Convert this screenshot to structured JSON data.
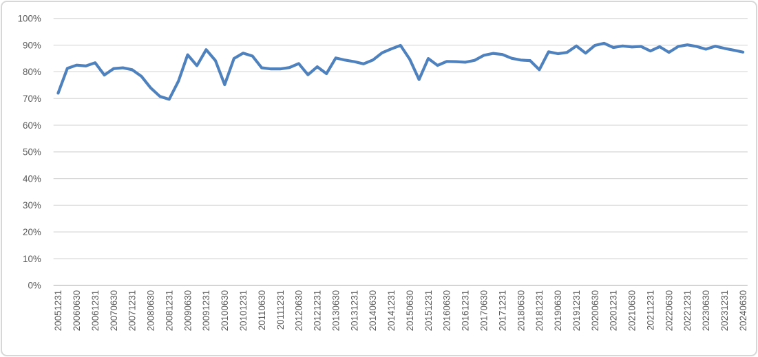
{
  "chart_data": {
    "type": "line",
    "title": "",
    "legend": "none",
    "grid": "horizontal",
    "ylim": [
      0,
      100
    ],
    "y_ticks": [
      "0%",
      "10%",
      "20%",
      "30%",
      "40%",
      "50%",
      "60%",
      "70%",
      "80%",
      "90%",
      "100%"
    ],
    "x_tick_labels": [
      "20051231",
      "20060630",
      "20061231",
      "20070630",
      "20071231",
      "20080630",
      "20081231",
      "20090630",
      "20091231",
      "20100630",
      "20101231",
      "20110630",
      "20111231",
      "20120630",
      "20121231",
      "20130630",
      "20131231",
      "20140630",
      "20141231",
      "20150630",
      "20151231",
      "20160630",
      "20161231",
      "20170630",
      "20171231",
      "20180630",
      "20181231",
      "20190630",
      "20191231",
      "20200630",
      "20201231",
      "20210630",
      "20211231",
      "20220630",
      "20221231",
      "20230630",
      "20231231",
      "20240630"
    ],
    "points_per_tick": 2,
    "series": [
      {
        "name": "",
        "color": "#4F81BD",
        "values": [
          72.0,
          81.3,
          82.5,
          82.2,
          83.4,
          78.8,
          81.2,
          81.5,
          80.8,
          78.3,
          74.0,
          70.8,
          69.7,
          76.5,
          86.4,
          82.3,
          88.3,
          84.2,
          75.2,
          85.0,
          87.0,
          85.9,
          81.5,
          81.1,
          81.1,
          81.6,
          83.1,
          78.9,
          81.9,
          79.3,
          85.2,
          84.4,
          83.8,
          83.0,
          84.4,
          87.1,
          88.6,
          89.9,
          84.7,
          77.1,
          85.0,
          82.4,
          83.9,
          83.8,
          83.6,
          84.3,
          86.2,
          86.9,
          86.5,
          85.1,
          84.4,
          84.2,
          80.8,
          87.5,
          86.8,
          87.3,
          89.7,
          87.0,
          89.9,
          90.7,
          89.1,
          89.7,
          89.3,
          89.5,
          87.8,
          89.4,
          87.3,
          89.5,
          90.1,
          89.5,
          88.5,
          89.6,
          88.8,
          88.1,
          87.4
        ]
      }
    ]
  },
  "colors": {
    "grid": "#d9d9d9",
    "axis": "#bfbfbf",
    "tick_text": "#595959",
    "frame_border": "#d7d7d7",
    "background": "#ffffff"
  }
}
